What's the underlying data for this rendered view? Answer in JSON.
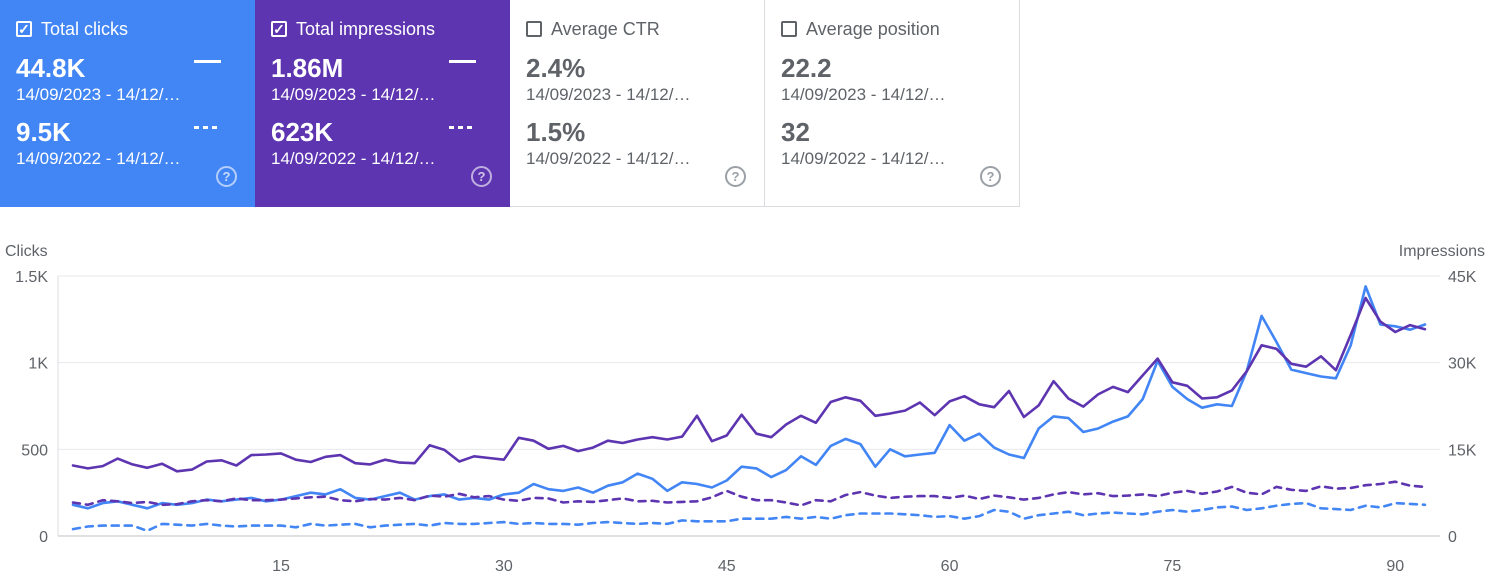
{
  "cards": [
    {
      "label": "Total clicks",
      "checked": true,
      "current_value": "44.8K",
      "current_range": "14/09/2023 - 14/12/…",
      "previous_value": "9.5K",
      "previous_range": "14/09/2022 - 14/12/…",
      "check_glyph": "✓",
      "help_glyph": "?"
    },
    {
      "label": "Total impressions",
      "checked": true,
      "current_value": "1.86M",
      "current_range": "14/09/2023 - 14/12/…",
      "previous_value": "623K",
      "previous_range": "14/09/2022 - 14/12/…",
      "check_glyph": "✓",
      "help_glyph": "?"
    },
    {
      "label": "Average CTR",
      "checked": false,
      "current_value": "2.4%",
      "current_range": "14/09/2023 - 14/12/…",
      "previous_value": "1.5%",
      "previous_range": "14/09/2022 - 14/12/…",
      "check_glyph": "",
      "help_glyph": "?"
    },
    {
      "label": "Average position",
      "checked": false,
      "current_value": "22.2",
      "current_range": "14/09/2023 - 14/12/…",
      "previous_value": "32",
      "previous_range": "14/09/2022 - 14/12/…",
      "check_glyph": "",
      "help_glyph": "?"
    }
  ],
  "colors": {
    "clicks": "#4285f4",
    "impressions": "#5e35b1",
    "grid": "#e8eaed",
    "axis_text": "#5f6368"
  },
  "chart_data": {
    "type": "line",
    "left_axis": {
      "label": "Clicks",
      "ticks": [
        0,
        500,
        1000,
        1500
      ],
      "tick_labels": [
        "0",
        "500",
        "1K",
        "1.5K"
      ],
      "range": [
        0,
        1500
      ]
    },
    "right_axis": {
      "label": "Impressions",
      "ticks": [
        0,
        15000,
        30000,
        45000
      ],
      "tick_labels": [
        "0",
        "15K",
        "30K",
        "45K"
      ],
      "range": [
        0,
        45000
      ]
    },
    "x_axis": {
      "range": [
        1,
        92
      ],
      "ticks": [
        15,
        30,
        45,
        60,
        75,
        90
      ],
      "tick_labels": [
        "15",
        "30",
        "45",
        "60",
        "75",
        "90"
      ]
    },
    "grid": true,
    "x": [
      1,
      2,
      3,
      4,
      5,
      6,
      7,
      8,
      9,
      10,
      11,
      12,
      13,
      14,
      15,
      16,
      17,
      18,
      19,
      20,
      21,
      22,
      23,
      24,
      25,
      26,
      27,
      28,
      29,
      30,
      31,
      32,
      33,
      34,
      35,
      36,
      37,
      38,
      39,
      40,
      41,
      42,
      43,
      44,
      45,
      46,
      47,
      48,
      49,
      50,
      51,
      52,
      53,
      54,
      55,
      56,
      57,
      58,
      59,
      60,
      61,
      62,
      63,
      64,
      65,
      66,
      67,
      68,
      69,
      70,
      71,
      72,
      73,
      74,
      75,
      76,
      77,
      78,
      79,
      80,
      81,
      82,
      83,
      84,
      85,
      86,
      87,
      88,
      89,
      90,
      91,
      92
    ],
    "series": [
      {
        "axis": "left",
        "style": "solid",
        "color": "#4285f4",
        "values": [
          180,
          160,
          190,
          200,
          180,
          160,
          190,
          180,
          190,
          210,
          200,
          210,
          220,
          200,
          210,
          230,
          250,
          240,
          270,
          220,
          210,
          230,
          250,
          210,
          230,
          240,
          210,
          220,
          210,
          240,
          250,
          300,
          270,
          260,
          280,
          250,
          290,
          310,
          360,
          330,
          260,
          310,
          300,
          280,
          320,
          400,
          390,
          340,
          380,
          460,
          410,
          520,
          560,
          530,
          400,
          500,
          460,
          470,
          480,
          640,
          550,
          590,
          510,
          470,
          450,
          620,
          690,
          680,
          600,
          620,
          660,
          690,
          790,
          1010,
          860,
          790,
          740,
          760,
          750,
          950,
          1270,
          1120,
          960,
          940,
          920,
          910,
          1100,
          1440,
          1220,
          1210,
          1190,
          1220
        ]
      },
      {
        "axis": "right",
        "style": "solid",
        "color": "#5e35b1",
        "values": [
          12200,
          11700,
          12100,
          13400,
          12400,
          11800,
          12500,
          11200,
          11500,
          12900,
          13100,
          12200,
          14000,
          14100,
          14300,
          13200,
          12800,
          13700,
          14000,
          12600,
          12400,
          13200,
          12700,
          12600,
          15700,
          14900,
          12900,
          13800,
          13500,
          13200,
          17000,
          16500,
          15100,
          15600,
          14700,
          15300,
          16500,
          16100,
          16700,
          17100,
          16700,
          17200,
          20800,
          16400,
          17400,
          21000,
          17700,
          17100,
          19300,
          20800,
          19600,
          23200,
          24000,
          23400,
          20800,
          21200,
          21700,
          23100,
          20900,
          23300,
          24200,
          22800,
          22300,
          25100,
          20600,
          22600,
          26800,
          23800,
          22400,
          24500,
          25800,
          24900,
          27800,
          30700,
          26600,
          26000,
          23800,
          24000,
          25200,
          28500,
          33000,
          32400,
          29800,
          29300,
          31100,
          28700,
          34800,
          41200,
          37100,
          35300,
          36500,
          35800
        ]
      },
      {
        "axis": "left",
        "style": "dashed",
        "color": "#4285f4",
        "values": [
          40,
          55,
          60,
          60,
          60,
          30,
          70,
          65,
          60,
          70,
          60,
          55,
          60,
          60,
          60,
          50,
          70,
          60,
          65,
          70,
          50,
          60,
          65,
          70,
          60,
          75,
          70,
          70,
          75,
          80,
          70,
          75,
          70,
          70,
          65,
          75,
          80,
          75,
          70,
          75,
          70,
          90,
          85,
          85,
          85,
          100,
          100,
          100,
          110,
          100,
          110,
          100,
          120,
          130,
          130,
          130,
          125,
          120,
          110,
          115,
          100,
          115,
          150,
          140,
          100,
          120,
          130,
          140,
          120,
          130,
          135,
          130,
          125,
          140,
          150,
          140,
          150,
          165,
          170,
          150,
          160,
          175,
          185,
          190,
          160,
          155,
          150,
          175,
          165,
          190,
          185,
          180
        ]
      },
      {
        "axis": "right",
        "style": "dashed",
        "color": "#5e35b1",
        "values": [
          5800,
          5400,
          6200,
          6000,
          5700,
          5900,
          5400,
          5500,
          6000,
          6200,
          6000,
          6500,
          6200,
          6200,
          6300,
          6500,
          6700,
          6800,
          6200,
          6000,
          6400,
          6300,
          6600,
          6200,
          7000,
          6800,
          7300,
          6700,
          6900,
          6300,
          6100,
          6600,
          6500,
          5800,
          6000,
          5900,
          6200,
          6500,
          6000,
          6100,
          5800,
          5900,
          6000,
          6700,
          7800,
          6800,
          6200,
          6200,
          5800,
          5300,
          6200,
          6000,
          7100,
          7600,
          7000,
          6600,
          6800,
          6900,
          6900,
          6600,
          7000,
          6400,
          7000,
          6700,
          6300,
          6600,
          7200,
          7600,
          7200,
          7400,
          6900,
          7000,
          7200,
          6900,
          7500,
          7800,
          7300,
          7700,
          8500,
          7500,
          7200,
          8500,
          8000,
          7800,
          8600,
          8200,
          8300,
          8800,
          9000,
          9400,
          8700,
          8500
        ]
      }
    ]
  }
}
